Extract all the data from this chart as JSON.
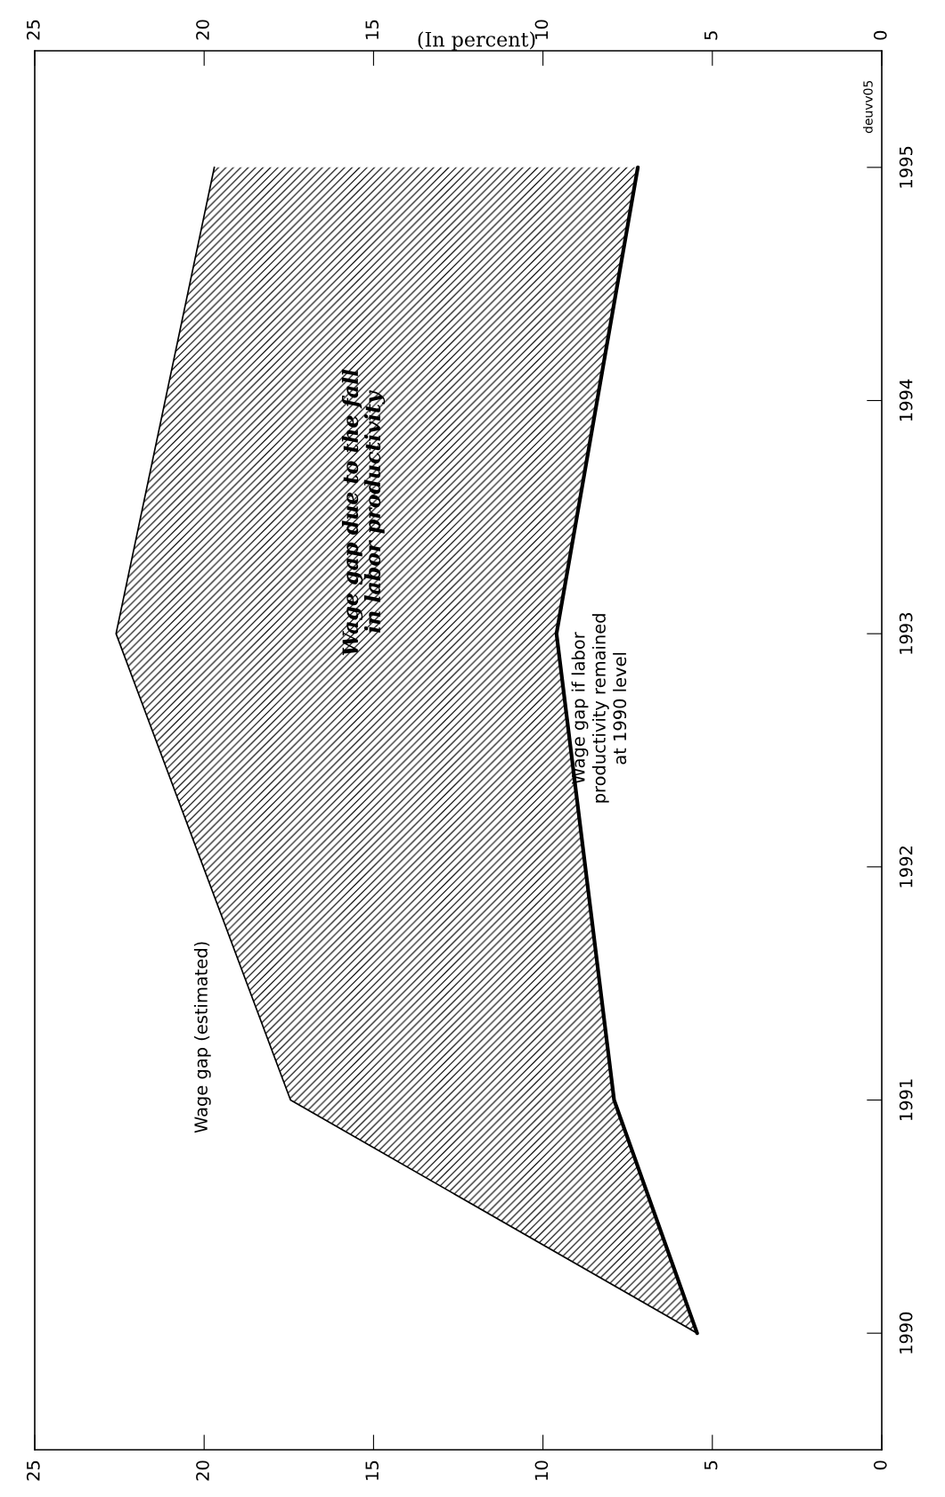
{
  "chart_data": {
    "type": "line",
    "orientation": "horizontal",
    "title": "(In percent)",
    "series": [
      {
        "name": "Wage gap if labor\nproductivity remained\nat 1990 level",
        "color": "#000000",
        "x": [
          1990,
          1991,
          1993,
          1995
        ],
        "values": [
          5.45,
          7.9,
          9.6,
          7.2
        ]
      },
      {
        "name": "Wage gap (estimated)",
        "type": "area",
        "color": "#000000",
        "x": [
          1990,
          1991,
          1993,
          1995
        ],
        "values": [
          5.45,
          17.45,
          22.6,
          19.7
        ]
      }
    ],
    "annotations": [
      "Wage gap due to the fall\nin labor productivity",
      "deuvv05"
    ],
    "ylim": [
      1989.5,
      1995.5
    ],
    "yticks": [
      1990,
      1991,
      1992,
      1993,
      1994,
      1995
    ],
    "xlim": [
      25,
      0
    ],
    "xticks": [
      0,
      5,
      10,
      15,
      20,
      25
    ],
    "x2lim": [
      25,
      0
    ],
    "x2ticks": [
      0,
      5,
      10,
      15,
      20,
      25
    ],
    "grid": false,
    "legend": false
  }
}
